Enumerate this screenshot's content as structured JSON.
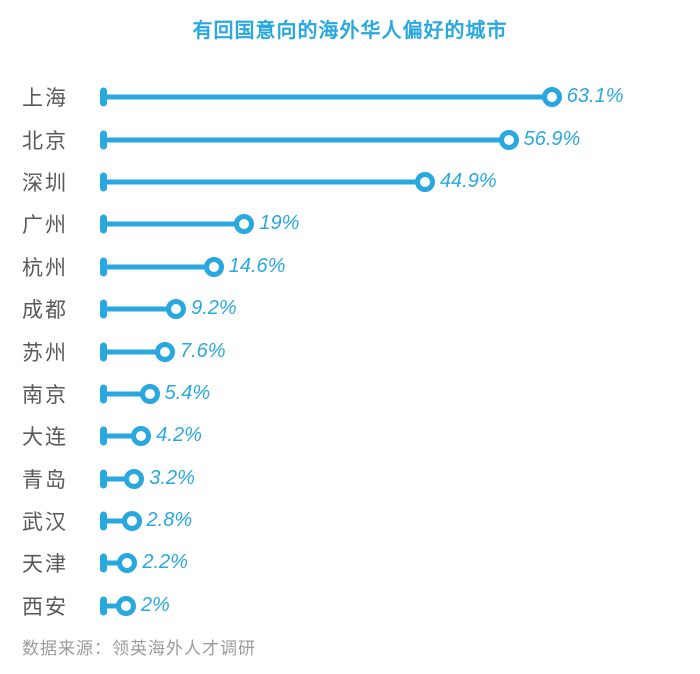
{
  "chart_data": {
    "type": "bar",
    "variant": "horizontal-lollipop",
    "title": "有回国意向的海外华人偏好的城市",
    "categories": [
      "上海",
      "北京",
      "深圳",
      "广州",
      "杭州",
      "成都",
      "苏州",
      "南京",
      "大连",
      "青岛",
      "武汉",
      "天津",
      "西安"
    ],
    "values": [
      63.1,
      56.9,
      44.9,
      19,
      14.6,
      9.2,
      7.6,
      5.4,
      4.2,
      3.2,
      2.8,
      2.2,
      2
    ],
    "value_labels": [
      "63.1%",
      "56.9%",
      "44.9%",
      "19%",
      "14.6%",
      "9.2%",
      "7.6%",
      "5.4%",
      "4.2%",
      "3.2%",
      "2.8%",
      "2.2%",
      "2%"
    ],
    "xlabel": "",
    "ylabel": "",
    "xlim": [
      0,
      70
    ],
    "grid": false,
    "legend": null,
    "value_label_style": "italic",
    "source_note": "数据来源：领英海外人才调研",
    "colors": {
      "accent": "#29A8E0",
      "category_label": "#58595B",
      "source_note": "#9B9B9B",
      "background": "#FFFFFF"
    }
  }
}
